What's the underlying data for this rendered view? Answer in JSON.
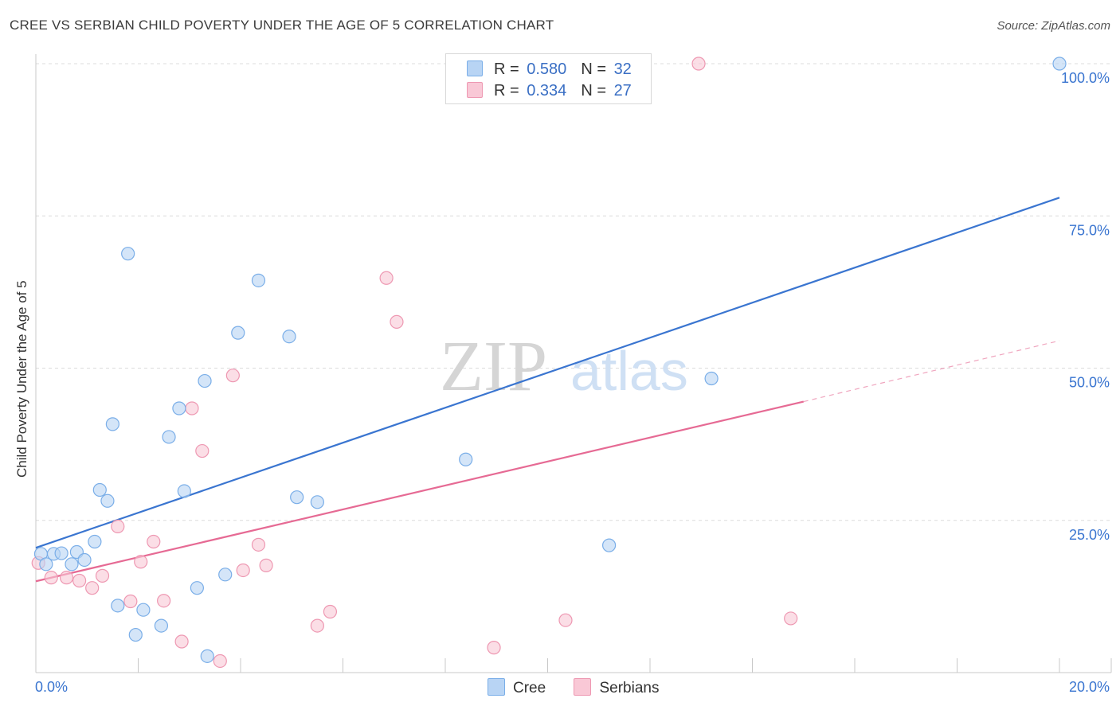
{
  "title": "CREE VS SERBIAN CHILD POVERTY UNDER THE AGE OF 5 CORRELATION CHART",
  "source": "Source: ZipAtlas.com",
  "watermark": {
    "zip": "ZIP",
    "atlas": "atlas"
  },
  "legend": {
    "rows": [
      {
        "r_label": "R =",
        "r_value": "0.580",
        "n_label": "N =",
        "n_value": "32",
        "color": "#b8d4f4",
        "border": "#7aaee8"
      },
      {
        "r_label": "R =",
        "r_value": "0.334",
        "n_label": "N =",
        "n_value": "27",
        "color": "#f9c8d6",
        "border": "#ee98b2"
      }
    ]
  },
  "bottom_legend": [
    {
      "label": "Cree",
      "color": "#b8d4f4",
      "border": "#7aaee8"
    },
    {
      "label": "Serbians",
      "color": "#f9c8d6",
      "border": "#ee98b2"
    }
  ],
  "chart_data": {
    "type": "scatter",
    "title": "CREE VS SERBIAN CHILD POVERTY UNDER THE AGE OF 5 CORRELATION CHART",
    "xlabel": "",
    "ylabel": "Child Poverty Under the Age of 5",
    "xlim": [
      0,
      20
    ],
    "ylim": [
      0,
      100
    ],
    "x_tick_labels": [
      "0.0%",
      "20.0%"
    ],
    "y_tick_values": [
      25,
      50,
      75,
      100
    ],
    "y_tick_labels": [
      "25.0%",
      "50.0%",
      "75.0%",
      "100.0%"
    ],
    "grid": true,
    "legend_position": "top-center",
    "series": [
      {
        "name": "Cree",
        "color": "#7aaee8",
        "fill": "#b8d4f4",
        "trend_color": "#3a75d0",
        "trend": {
          "x": [
            0,
            20
          ],
          "y": [
            20.5,
            78.0
          ]
        },
        "points": [
          [
            0.1,
            19.5
          ],
          [
            0.2,
            17.8
          ],
          [
            0.35,
            19.5
          ],
          [
            0.5,
            19.6
          ],
          [
            0.7,
            17.8
          ],
          [
            0.8,
            19.8
          ],
          [
            0.95,
            18.5
          ],
          [
            1.15,
            21.5
          ],
          [
            1.25,
            30.0
          ],
          [
            1.4,
            28.2
          ],
          [
            1.5,
            40.8
          ],
          [
            1.6,
            11.0
          ],
          [
            1.8,
            68.8
          ],
          [
            1.95,
            6.2
          ],
          [
            2.1,
            10.3
          ],
          [
            2.45,
            7.7
          ],
          [
            2.6,
            38.7
          ],
          [
            2.8,
            43.4
          ],
          [
            2.9,
            29.8
          ],
          [
            3.15,
            13.9
          ],
          [
            3.3,
            47.9
          ],
          [
            3.35,
            2.7
          ],
          [
            3.7,
            16.1
          ],
          [
            3.95,
            55.8
          ],
          [
            4.35,
            64.4
          ],
          [
            4.95,
            55.2
          ],
          [
            5.1,
            28.8
          ],
          [
            5.5,
            28.0
          ],
          [
            8.4,
            35.0
          ],
          [
            11.2,
            20.9
          ],
          [
            13.2,
            48.3
          ],
          [
            20.0,
            100.0
          ]
        ]
      },
      {
        "name": "Serbians",
        "color": "#ee98b2",
        "fill": "#f9c8d6",
        "trend_color": "#e66a94",
        "trend": {
          "x": [
            0,
            15
          ],
          "y": [
            15.0,
            44.5
          ]
        },
        "trend_extension": {
          "x": [
            15,
            20
          ],
          "y": [
            44.5,
            54.5
          ]
        },
        "points": [
          [
            0.05,
            18.0
          ],
          [
            0.3,
            15.6
          ],
          [
            0.6,
            15.6
          ],
          [
            0.85,
            15.1
          ],
          [
            1.1,
            13.9
          ],
          [
            1.3,
            15.9
          ],
          [
            1.6,
            24.0
          ],
          [
            1.85,
            11.7
          ],
          [
            2.05,
            18.2
          ],
          [
            2.3,
            21.5
          ],
          [
            2.5,
            11.8
          ],
          [
            2.85,
            5.1
          ],
          [
            3.05,
            43.4
          ],
          [
            3.25,
            36.4
          ],
          [
            3.6,
            1.9
          ],
          [
            3.85,
            48.8
          ],
          [
            4.05,
            16.8
          ],
          [
            4.35,
            21.0
          ],
          [
            4.5,
            17.6
          ],
          [
            5.5,
            7.7
          ],
          [
            5.75,
            10.0
          ],
          [
            6.85,
            64.8
          ],
          [
            7.05,
            57.6
          ],
          [
            8.95,
            4.1
          ],
          [
            10.35,
            8.6
          ],
          [
            12.95,
            100.0
          ],
          [
            14.75,
            8.9
          ]
        ]
      }
    ]
  }
}
